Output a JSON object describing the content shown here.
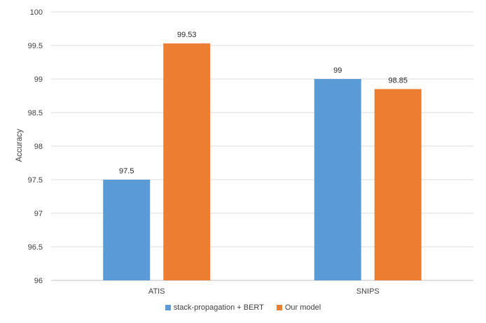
{
  "chart_data": {
    "type": "bar",
    "categories": [
      "ATIS",
      "SNIPS"
    ],
    "series": [
      {
        "name": "stack-propagation + BERT",
        "color": "#5B9BD5",
        "values": [
          97.5,
          99
        ],
        "labels": [
          "97.5",
          "99"
        ]
      },
      {
        "name": "Our model",
        "color": "#ED7D31",
        "values": [
          99.53,
          98.85
        ],
        "labels": [
          "99.53",
          "98.85"
        ]
      }
    ],
    "ylabel": "Accuracy",
    "ylim": [
      96,
      100
    ],
    "yticks": [
      "96",
      "96.5",
      "97",
      "97.5",
      "98",
      "98.5",
      "99",
      "99.5",
      "100"
    ],
    "grid": true,
    "legend_position": "bottom"
  }
}
